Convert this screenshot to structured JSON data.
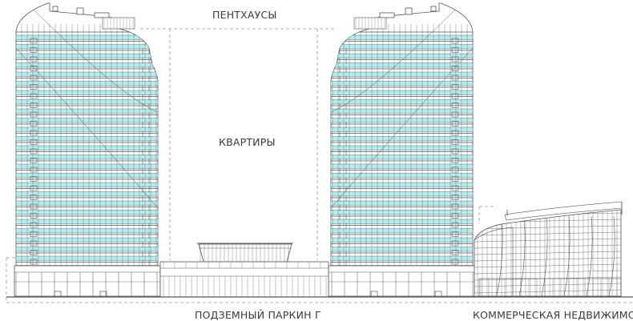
{
  "labels": {
    "penthouses": "ПЕНТХАУСЫ",
    "apartments": "КВАРТИРЫ",
    "parking": "ПОДЗЕМНЫЙ ПАРКИН Г",
    "commercial": "КОММЕРЧЕСКАЯ  НЕДВИЖИМОСТЬ"
  },
  "colors": {
    "line": "#555555",
    "glass": "#aeeff2",
    "dashed": "#9a9a9a"
  }
}
